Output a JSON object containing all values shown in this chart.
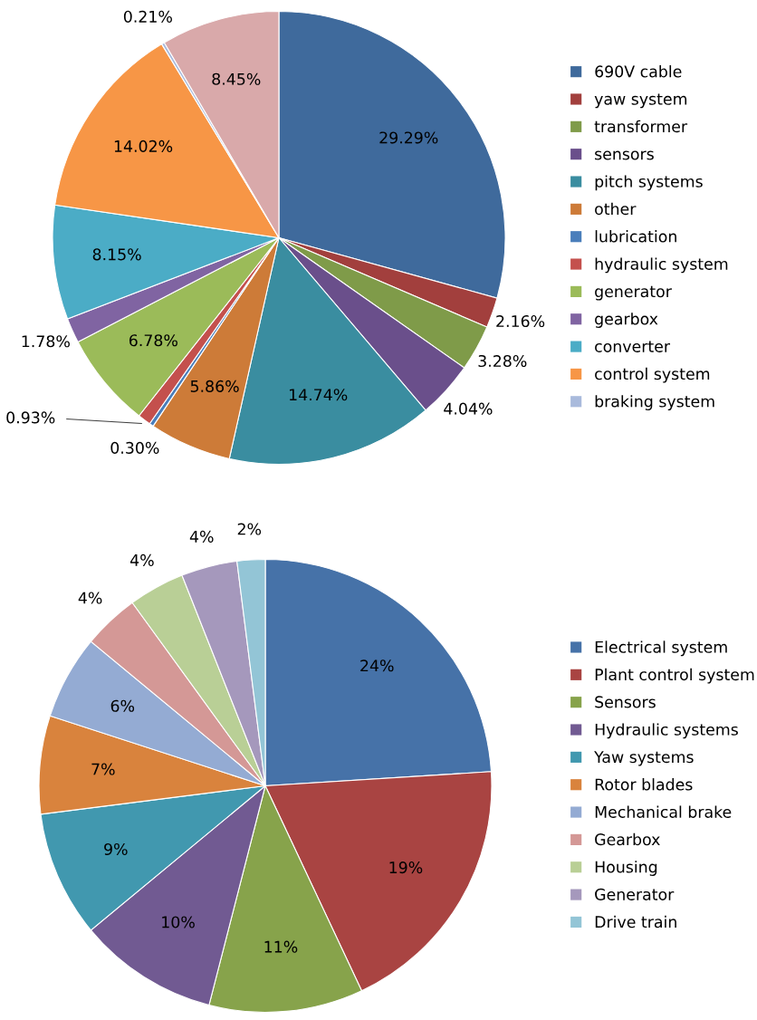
{
  "chart_data": [
    {
      "type": "pie",
      "categories": [
        "690V cable",
        "yaw system",
        "transformer",
        "sensors",
        "pitch systems",
        "other",
        "lubrication",
        "hydraulic system",
        "generator",
        "gearbox",
        "converter",
        "control system",
        "braking system",
        null
      ],
      "values": [
        29.29,
        2.16,
        3.28,
        4.04,
        14.74,
        5.86,
        0.3,
        0.93,
        6.78,
        1.78,
        8.15,
        14.02,
        0.21,
        8.45
      ],
      "value_labels": [
        "29.29%",
        "2.16%",
        "3.28%",
        "4.04%",
        "14.74%",
        "5.86%",
        "0.30%",
        "0.93%",
        "6.78%",
        "1.78%",
        "8.15%",
        "14.02%",
        "0.21%",
        "8.45%"
      ],
      "colors": [
        "#3f6a9c",
        "#a23f3d",
        "#7f9b49",
        "#6a4f8b",
        "#3a8da0",
        "#cd7b38",
        "#4a7ebb",
        "#c4504d",
        "#9bbb59",
        "#8064a2",
        "#4bacc6",
        "#f79646",
        "#a9badc",
        "#d9a9aa"
      ],
      "legend": "right"
    },
    {
      "type": "pie",
      "categories": [
        "Electrical system",
        "Plant control system",
        "Sensors",
        "Hydraulic systems",
        "Yaw systems",
        "Rotor blades",
        "Mechanical brake",
        "Gearbox",
        "Housing",
        "Generator",
        "Drive train"
      ],
      "values": [
        24,
        19,
        11,
        10,
        9,
        7,
        6,
        4,
        4,
        4,
        2
      ],
      "value_labels": [
        "24%",
        "19%",
        "11%",
        "10%",
        "9%",
        "7%",
        "6%",
        "4%",
        "4%",
        "4%",
        "2%"
      ],
      "colors": [
        "#4672a8",
        "#a94442",
        "#87a34b",
        "#715a92",
        "#4198af",
        "#d9833d",
        "#94abd3",
        "#d49896",
        "#b9cf96",
        "#a598bc",
        "#93c5d6"
      ],
      "legend": "right"
    }
  ]
}
